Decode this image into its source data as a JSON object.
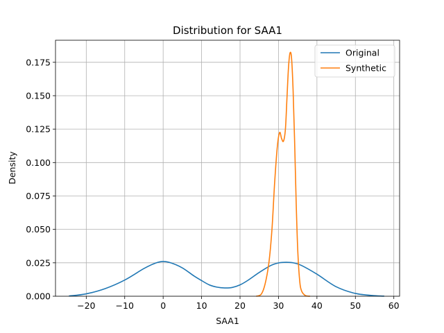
{
  "chart_data": {
    "type": "line",
    "title": "Distribution for SAA1",
    "xlabel": "SAA1",
    "ylabel": "Density",
    "xlim": [
      -28,
      61.5
    ],
    "ylim": [
      0,
      0.1915
    ],
    "xticks": [
      -20,
      -10,
      0,
      10,
      20,
      30,
      40,
      50,
      60
    ],
    "xtick_labels": [
      "−20",
      "−10",
      "0",
      "10",
      "20",
      "30",
      "40",
      "50",
      "60"
    ],
    "yticks": [
      0,
      0.025,
      0.05,
      0.075,
      0.1,
      0.125,
      0.15,
      0.175
    ],
    "ytick_labels": [
      "0.000",
      "0.025",
      "0.050",
      "0.075",
      "0.100",
      "0.125",
      "0.150",
      "0.175"
    ],
    "grid": true,
    "legend_position": "top-right",
    "series": [
      {
        "name": "Original",
        "color": "#1f77b4",
        "x": [
          -24.5,
          -20,
          -15,
          -10,
          -5,
          -2,
          0,
          2,
          5,
          8,
          10,
          12,
          14,
          16,
          18,
          20,
          22,
          25,
          28,
          30,
          32,
          34,
          36,
          40,
          45,
          50,
          55,
          57.5
        ],
        "y": [
          0.0002,
          0.0018,
          0.0058,
          0.0121,
          0.0207,
          0.0248,
          0.026,
          0.025,
          0.0212,
          0.0152,
          0.0117,
          0.0085,
          0.0068,
          0.0062,
          0.0066,
          0.0085,
          0.0118,
          0.0178,
          0.023,
          0.0249,
          0.0254,
          0.0249,
          0.023,
          0.0165,
          0.0071,
          0.0021,
          0.0004,
          0.0001
        ]
      },
      {
        "name": "Synthetic",
        "color": "#ff7f0e",
        "x": [
          24.2,
          25.5,
          26.5,
          27.5,
          28.3,
          29,
          29.7,
          30.3,
          30.8,
          31.3,
          31.8,
          32.2,
          32.6,
          33,
          33.4,
          33.8,
          34.2,
          34.6,
          35,
          35.5,
          36,
          37,
          38.2
        ],
        "y": [
          0.0,
          0.0015,
          0.009,
          0.025,
          0.05,
          0.085,
          0.112,
          0.1225,
          0.118,
          0.116,
          0.125,
          0.148,
          0.171,
          0.182,
          0.178,
          0.154,
          0.115,
          0.07,
          0.035,
          0.012,
          0.004,
          0.0005,
          0.0
        ]
      }
    ]
  }
}
